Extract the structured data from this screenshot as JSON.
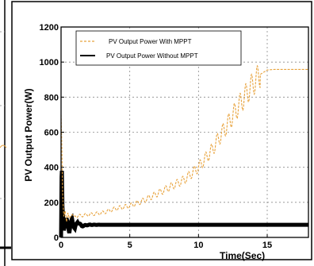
{
  "chart_data": {
    "type": "line",
    "title": "",
    "xlabel": "Time(Sec)",
    "ylabel": "PV Output Power(W)",
    "xlim": [
      0,
      18
    ],
    "ylim": [
      0,
      1200
    ],
    "xticks": [
      0,
      5,
      10,
      15
    ],
    "yticks": [
      0,
      200,
      400,
      600,
      800,
      1000,
      1200
    ],
    "xtick_labels": [
      "0",
      "5",
      "10",
      "15"
    ],
    "ytick_labels": [
      "0",
      "200",
      "400",
      "600",
      "800",
      "1000",
      "1200"
    ],
    "grid": true,
    "legend_position": "top-left",
    "series": [
      {
        "name": "PV Output Power  With MPPT",
        "color": "#e8a33d",
        "style": "dashed",
        "x": [
          0,
          0.05,
          0.1,
          0.15,
          0.2,
          0.3,
          0.4,
          0.5,
          0.6,
          0.8,
          1.0,
          1.5,
          2,
          3,
          4,
          5,
          6,
          7,
          8,
          9,
          10,
          11,
          11.5,
          12,
          13,
          14,
          14.5,
          15,
          15.5,
          16,
          17,
          18
        ],
        "y": [
          700,
          550,
          300,
          180,
          120,
          150,
          90,
          140,
          110,
          130,
          120,
          125,
          130,
          140,
          165,
          180,
          210,
          250,
          290,
          330,
          400,
          500,
          570,
          630,
          760,
          880,
          930,
          955,
          958,
          958,
          958,
          958
        ]
      },
      {
        "name": " PV Output Power  Without MPPT",
        "color": "#000000",
        "style": "solid",
        "x": [
          0,
          0.05,
          0.1,
          0.2,
          0.4,
          0.6,
          0.8,
          1.0,
          1.2,
          1.5,
          2,
          18
        ],
        "y": [
          0,
          430,
          180,
          40,
          110,
          40,
          100,
          50,
          90,
          65,
          72,
          72
        ]
      }
    ]
  }
}
